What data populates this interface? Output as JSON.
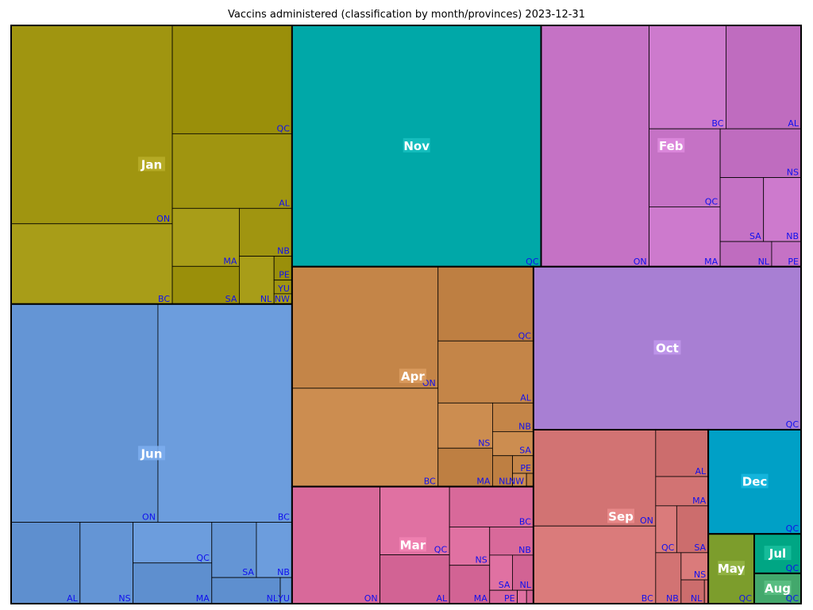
{
  "chart_data": {
    "type": "treemap",
    "title": "Vaccins administered (classification by month/provinces)  2023-12-31",
    "months": [
      {
        "label": "Jan",
        "color": "#a09510",
        "provinces": [
          {
            "label": "ON",
            "value": 5190
          },
          {
            "label": "BC",
            "value": 2100
          },
          {
            "label": "QC",
            "value": 2105
          },
          {
            "label": "AL",
            "value": 1450
          },
          {
            "label": "MA",
            "value": 630
          },
          {
            "label": "SA",
            "value": 410
          },
          {
            "label": "NB",
            "value": 410
          },
          {
            "label": "NL",
            "value": 270
          },
          {
            "label": "PE",
            "value": 70
          },
          {
            "label": "YU",
            "value": 40
          },
          {
            "label": "NW",
            "value": 30
          }
        ]
      },
      {
        "label": "Jun",
        "color": "#6495d5",
        "provinces": [
          {
            "label": "ON",
            "value": 5200
          },
          {
            "label": "BC",
            "value": 4750
          },
          {
            "label": "AL",
            "value": 910
          },
          {
            "label": "NS",
            "value": 700
          },
          {
            "label": "QC",
            "value": 520
          },
          {
            "label": "MA",
            "value": 520
          },
          {
            "label": "SA",
            "value": 400
          },
          {
            "label": "NB",
            "value": 320
          },
          {
            "label": "NL",
            "value": 290
          },
          {
            "label": "YU",
            "value": 50
          }
        ]
      },
      {
        "label": "Nov",
        "color": "#00a8a8",
        "provinces": [
          {
            "label": "QC",
            "value": 9750
          }
        ]
      },
      {
        "label": "Feb",
        "color": "#c572c5",
        "provinces": [
          {
            "label": "ON",
            "value": 4230
          },
          {
            "label": "BC",
            "value": 1290
          },
          {
            "label": "AL",
            "value": 1260
          },
          {
            "label": "QC",
            "value": 900
          },
          {
            "label": "MA",
            "value": 690
          },
          {
            "label": "NS",
            "value": 640
          },
          {
            "label": "SA",
            "value": 450
          },
          {
            "label": "NB",
            "value": 390
          },
          {
            "label": "NL",
            "value": 210
          },
          {
            "label": "PE",
            "value": 120
          }
        ]
      },
      {
        "label": "Apr",
        "color": "#c48548",
        "provinces": [
          {
            "label": "ON",
            "value": 2880
          },
          {
            "label": "BC",
            "value": 2330
          },
          {
            "label": "QC",
            "value": 1150
          },
          {
            "label": "AL",
            "value": 960
          },
          {
            "label": "NS",
            "value": 400
          },
          {
            "label": "MA",
            "value": 340
          },
          {
            "label": "NB",
            "value": 190
          },
          {
            "label": "SA",
            "value": 160
          },
          {
            "label": "NL",
            "value": 100
          },
          {
            "label": "PE",
            "value": 60
          },
          {
            "label": "NW",
            "value": 30
          },
          {
            "label": "YU",
            "value": 15
          }
        ]
      },
      {
        "label": "Mar",
        "color": "#d8699a",
        "provinces": [
          {
            "label": "ON",
            "value": 1670
          },
          {
            "label": "QC",
            "value": 770
          },
          {
            "label": "AL",
            "value": 550
          },
          {
            "label": "BC",
            "value": 550
          },
          {
            "label": "NS",
            "value": 250
          },
          {
            "label": "MA",
            "value": 250
          },
          {
            "label": "NB",
            "value": 200
          },
          {
            "label": "SA",
            "value": 130
          },
          {
            "label": "NL",
            "value": 120
          },
          {
            "label": "PE",
            "value": 60
          },
          {
            "label": "NW",
            "value": 20
          },
          {
            "label": "YU",
            "value": 15
          }
        ]
      },
      {
        "label": "Oct",
        "color": "#a87fd3",
        "provinces": [
          {
            "label": "QC",
            "value": 7080
          }
        ]
      },
      {
        "label": "Sep",
        "color": "#d27373",
        "provinces": [
          {
            "label": "ON",
            "value": 1910
          },
          {
            "label": "BC",
            "value": 1540
          },
          {
            "label": "AL",
            "value": 400
          },
          {
            "label": "MA",
            "value": 250
          },
          {
            "label": "QC",
            "value": 160
          },
          {
            "label": "SA",
            "value": 240
          },
          {
            "label": "NB",
            "value": 210
          },
          {
            "label": "NS",
            "value": 120
          },
          {
            "label": "NL",
            "value": 90
          },
          {
            "label": "YU",
            "value": 15
          }
        ]
      },
      {
        "label": "Dec",
        "color": "#00a0c6",
        "provinces": [
          {
            "label": "QC",
            "value": 1570
          }
        ]
      },
      {
        "label": "May",
        "color": "#7c9d2c",
        "provinces": [
          {
            "label": "QC",
            "value": 520
          }
        ]
      },
      {
        "label": "Jul",
        "color": "#00a684",
        "provinces": [
          {
            "label": "QC",
            "value": 300
          }
        ]
      },
      {
        "label": "Aug",
        "color": "#43a86c",
        "provinces": [
          {
            "label": "QC",
            "value": 230
          }
        ]
      }
    ]
  }
}
